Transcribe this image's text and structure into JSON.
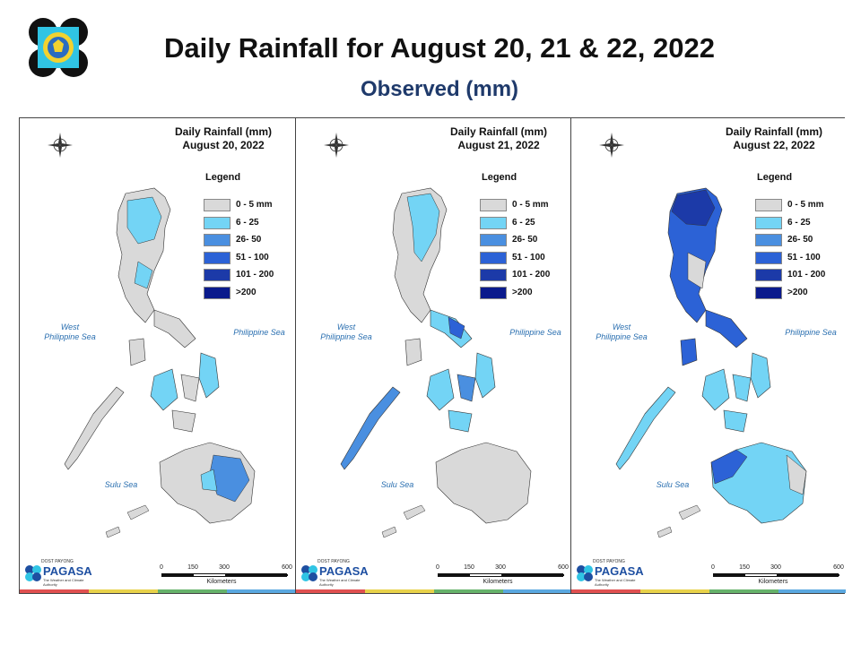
{
  "header": {
    "title": "Daily Rainfall for August 20, 21 & 22, 2022",
    "subtitle": "Observed (mm)"
  },
  "panels": [
    {
      "title_line1": "Daily Rainfall (mm)",
      "title_line2": "August 20, 2022"
    },
    {
      "title_line1": "Daily Rainfall (mm)",
      "title_line2": "August 21, 2022"
    },
    {
      "title_line1": "Daily Rainfall (mm)",
      "title_line2": "August 22, 2022"
    }
  ],
  "legend": {
    "title": "Legend",
    "items": [
      {
        "label": "0 - 5 mm",
        "color": "#d9d9d9"
      },
      {
        "label": "6 - 25",
        "color": "#73d4f5"
      },
      {
        "label": "26- 50",
        "color": "#4a8fe0"
      },
      {
        "label": "51 - 100",
        "color": "#2c62d6"
      },
      {
        "label": "101 - 200",
        "color": "#1c3aa8"
      },
      {
        "label": ">200",
        "color": "#0a1a8c"
      }
    ]
  },
  "sea_labels": {
    "west_philippine_sea": "West Philippine Sea",
    "philippine_sea": "Philippine Sea",
    "sulu_sea": "Sulu Sea"
  },
  "compass": {
    "n": "N",
    "s": "S",
    "e": "E",
    "w": "W"
  },
  "scale_bar": {
    "ticks": [
      "0",
      "150",
      "300",
      "600"
    ],
    "unit": "Kilometers"
  },
  "brand": {
    "top": "DOST PAYONG",
    "name": "PAGASA",
    "sub": "The Weather and Climate Authority"
  },
  "map_colors": {
    "land_low": "#d9d9d9",
    "light_blue": "#73d4f5",
    "mid_blue": "#4a8fe0",
    "blue": "#2c62d6",
    "dark_blue": "#1c3aa8",
    "strip": [
      "#e05050",
      "#e8d24a",
      "#66b26a",
      "#5aa8e0"
    ]
  }
}
